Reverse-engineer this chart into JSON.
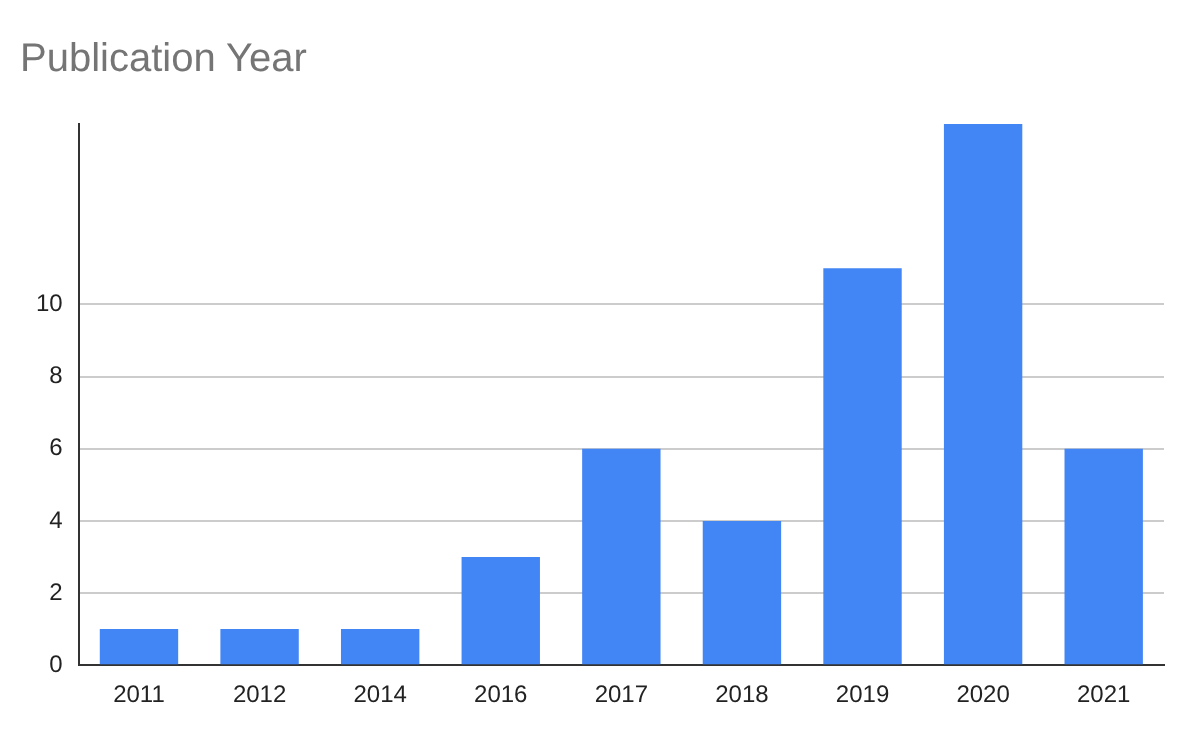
{
  "chart_data": {
    "type": "bar",
    "title": "Publication Year",
    "categories": [
      "2011",
      "2012",
      "2014",
      "2016",
      "2017",
      "2018",
      "2019",
      "2020",
      "2021"
    ],
    "values": [
      1,
      1,
      1,
      3,
      6,
      4,
      11,
      15,
      6
    ],
    "color": "#4285f4",
    "ylim": [
      0,
      15
    ],
    "yticks": [
      0,
      2,
      4,
      6,
      8,
      10
    ],
    "grid": "y"
  }
}
